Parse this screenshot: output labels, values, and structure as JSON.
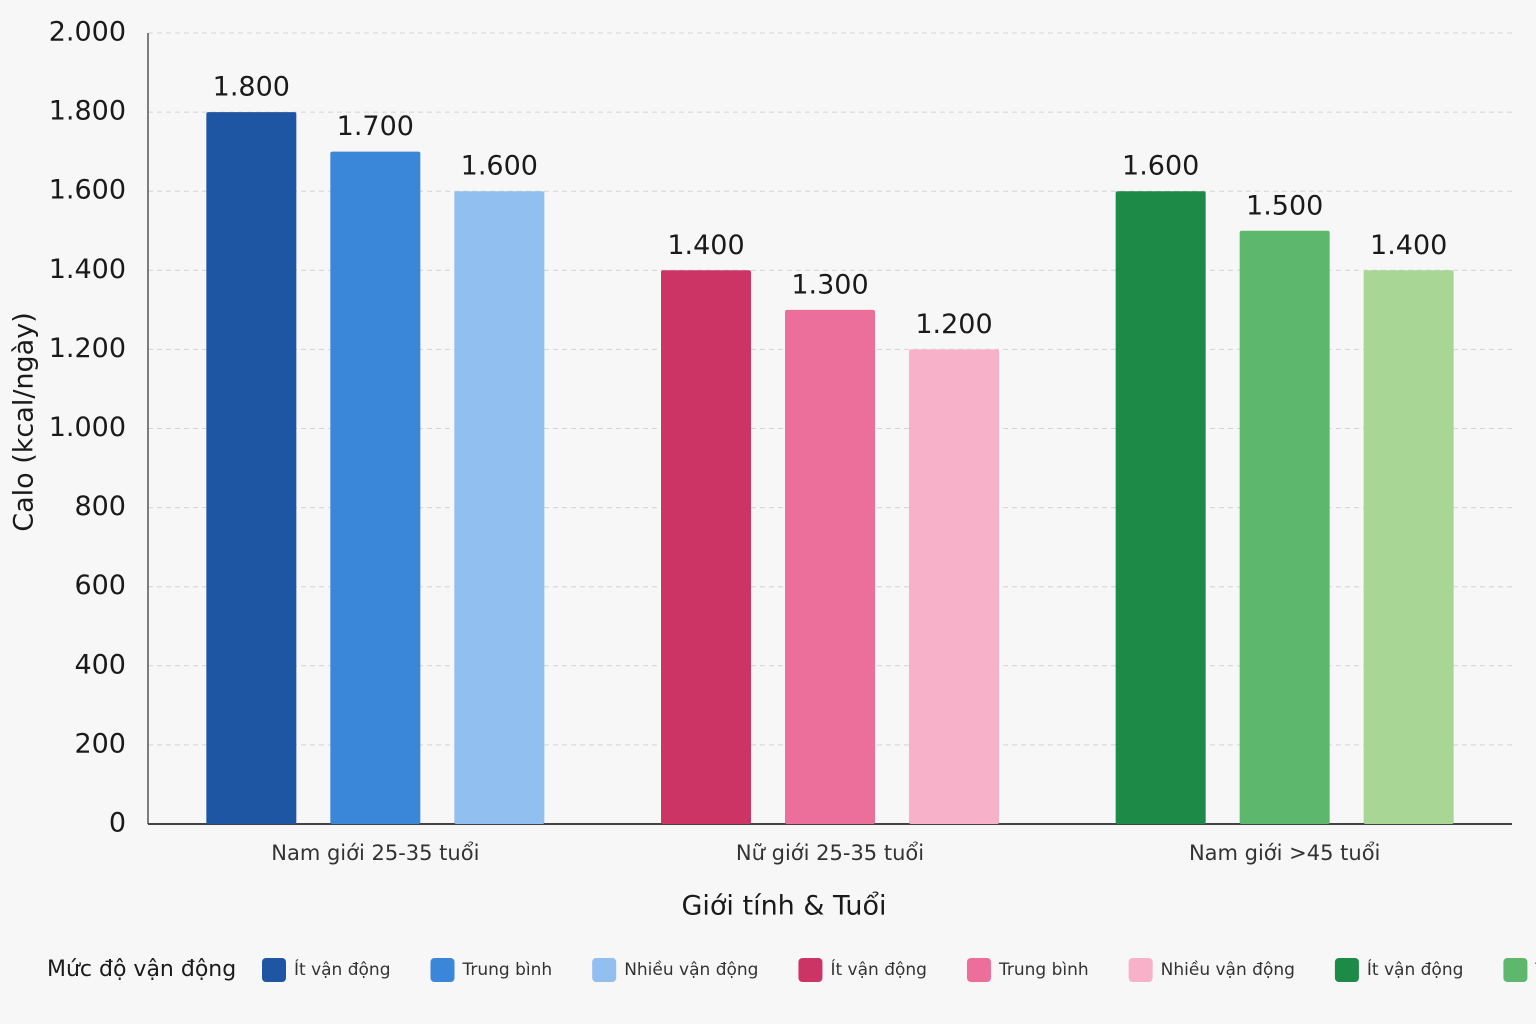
{
  "chart_data": {
    "type": "bar",
    "x_label": "Giới tính & Tuổi",
    "y_label": "Calo (kcal/ngày)",
    "legend_title": "Mức độ vận động",
    "categories": [
      "Nam giới 25-35 tuổi",
      "Nữ giới 25-35 tuổi",
      "Nam giới >45 tuổi"
    ],
    "series": [
      {
        "name": "Ít vận động",
        "colors": [
          "#1f56a3",
          "#cc3466",
          "#1d8a47"
        ],
        "values": [
          1800,
          1400,
          1600
        ],
        "value_labels": [
          "1.800",
          "1.400",
          "1.600"
        ]
      },
      {
        "name": "Trung bình",
        "colors": [
          "#3a86d8",
          "#ec6e9a",
          "#5db86e"
        ],
        "values": [
          1700,
          1300,
          1500
        ],
        "value_labels": [
          "1.700",
          "1.300",
          "1.500"
        ]
      },
      {
        "name": "Nhiều vận động",
        "colors": [
          "#90bff0",
          "#f7b2c9",
          "#a8d795"
        ],
        "values": [
          1600,
          1200,
          1400
        ],
        "value_labels": [
          "1.600",
          "1.200",
          "1.400"
        ]
      }
    ],
    "ylim": [
      0,
      2000
    ],
    "yticks": [
      0,
      200,
      400,
      600,
      800,
      {
        "value": 1000,
        "label": "1.000"
      },
      {
        "value": 1200,
        "label": "1.200"
      },
      {
        "value": 1400,
        "label": "1.400"
      },
      {
        "value": 1600,
        "label": "1.600"
      },
      {
        "value": 1800,
        "label": "1.800"
      },
      {
        "value": 2000,
        "label": "2.000"
      }
    ],
    "grid": true
  }
}
